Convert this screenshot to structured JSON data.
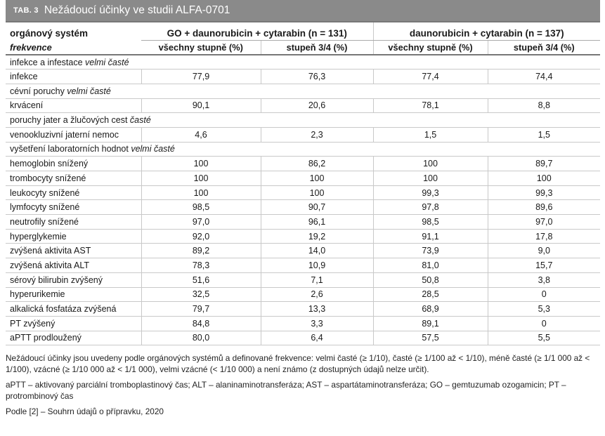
{
  "title_tag": "TAB. 3",
  "title": "Nežádoucí účinky ve studii ALFA-0701",
  "header": {
    "col0_top": "orgánový systém",
    "col0_bottom": "frekvence",
    "group1": "GO + daunorubicin + cytarabin (n = 131)",
    "group2": "daunorubicin + cytarabin (n = 137)",
    "sub_all": "všechny stupně (%)",
    "sub_g34": "stupeň 3/4 (%)"
  },
  "rows": [
    {
      "type": "cat",
      "name": "infekce a infestace ",
      "freq": "velmi časté"
    },
    {
      "type": "row",
      "name": "infekce",
      "v": [
        "77,9",
        "76,3",
        "77,4",
        "74,4"
      ]
    },
    {
      "type": "cat",
      "name": "cévní poruchy ",
      "freq": "velmi časté"
    },
    {
      "type": "row",
      "name": "krvácení",
      "v": [
        "90,1",
        "20,6",
        "78,1",
        "8,8"
      ]
    },
    {
      "type": "cat",
      "name": "poruchy jater a žlučových cest ",
      "freq": "časté"
    },
    {
      "type": "row",
      "name": "venookluzivní jaterní nemoc",
      "v": [
        "4,6",
        "2,3",
        "1,5",
        "1,5"
      ]
    },
    {
      "type": "cat",
      "name": "vyšetření laboratorních hodnot ",
      "freq": "velmi časté"
    },
    {
      "type": "row",
      "name": "hemoglobin snížený",
      "v": [
        "100",
        "86,2",
        "100",
        "89,7"
      ]
    },
    {
      "type": "row",
      "name": "trombocyty snížené",
      "v": [
        "100",
        "100",
        "100",
        "100"
      ]
    },
    {
      "type": "row",
      "name": "leukocyty snížené",
      "v": [
        "100",
        "100",
        "99,3",
        "99,3"
      ]
    },
    {
      "type": "row",
      "name": "lymfocyty snížené",
      "v": [
        "98,5",
        "90,7",
        "97,8",
        "89,6"
      ]
    },
    {
      "type": "row",
      "name": "neutrofily snížené",
      "v": [
        "97,0",
        "96,1",
        "98,5",
        "97,0"
      ]
    },
    {
      "type": "row",
      "name": "hyperglykemie",
      "v": [
        "92,0",
        "19,2",
        "91,1",
        "17,8"
      ]
    },
    {
      "type": "row",
      "name": "zvýšená aktivita AST",
      "v": [
        "89,2",
        "14,0",
        "73,9",
        "9,0"
      ]
    },
    {
      "type": "row",
      "name": "zvýšená aktivita ALT",
      "v": [
        "78,3",
        "10,9",
        "81,0",
        "15,7"
      ]
    },
    {
      "type": "row",
      "name": "sérový bilirubin zvýšený",
      "v": [
        "51,6",
        "7,1",
        "50,8",
        "3,8"
      ]
    },
    {
      "type": "row",
      "name": "hyperurikemie",
      "v": [
        "32,5",
        "2,6",
        "28,5",
        "0"
      ]
    },
    {
      "type": "row",
      "name": "alkalická fosfatáza zvýšená",
      "v": [
        "79,7",
        "13,3",
        "68,9",
        "5,3"
      ]
    },
    {
      "type": "row",
      "name": "PT zvýšený",
      "v": [
        "84,8",
        "3,3",
        "89,1",
        "0"
      ]
    },
    {
      "type": "row",
      "name": "aPTT prodloužený",
      "v": [
        "80,0",
        "6,4",
        "57,5",
        "5,5"
      ]
    }
  ],
  "notes": {
    "freq_def": "Nežádoucí účinky jsou uvedeny podle orgánových systémů a definované frekvence: velmi časté (≥ 1/10), časté (≥ 1/100 až < 1/10), méně časté (≥ 1/1 000 až < 1/100), vzácné (≥ 1/10 000 až < 1/1 000), velmi vzácné (< 1/10 000) a není známo (z dostupných údajů nelze určit).",
    "abbrev": "aPTT – aktivovaný parciální tromboplastinový čas; ALT – alaninaminotransferáza; AST – aspartátaminotransferáza; GO – gemtuzumab ozogamicin; PT – protrombinový čas",
    "source": "Podle [2] – Souhrn údajů o přípravku, 2020"
  }
}
